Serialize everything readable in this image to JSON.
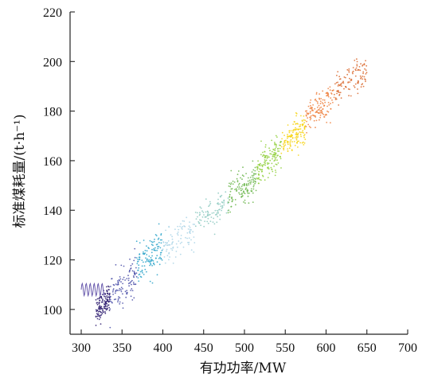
{
  "chart_data": {
    "type": "scatter",
    "title": "",
    "xlabel": "有功功率/MW",
    "ylabel": "标准煤耗量/(t·h⁻¹)",
    "xlim": [
      300,
      700
    ],
    "ylim": [
      90,
      220
    ],
    "xticks": [
      300,
      350,
      400,
      450,
      500,
      550,
      600,
      650,
      700
    ],
    "yticks": [
      100,
      120,
      140,
      160,
      180,
      200,
      220
    ],
    "grid": false,
    "legend": "none",
    "clusters": [
      {
        "x_range": [
          318,
          335
        ],
        "center_y": 102,
        "spread_y": 5,
        "color": "#2b1a6e",
        "density": 130
      },
      {
        "x_range": [
          335,
          368
        ],
        "center_y": 110,
        "spread_y": 7,
        "color": "#4a4fa8",
        "density": 110
      },
      {
        "x_range": [
          368,
          400
        ],
        "center_y": 121,
        "spread_y": 7,
        "color": "#2aa3c9",
        "density": 120
      },
      {
        "x_range": [
          400,
          440
        ],
        "center_y": 128,
        "spread_y": 6,
        "color": "#a9d3e6",
        "density": 90
      },
      {
        "x_range": [
          440,
          480
        ],
        "center_y": 139,
        "spread_y": 6,
        "color": "#8cc9c0",
        "density": 90
      },
      {
        "x_range": [
          480,
          515
        ],
        "center_y": 149,
        "spread_y": 6,
        "color": "#6ab54a",
        "density": 130
      },
      {
        "x_range": [
          515,
          545
        ],
        "center_y": 160,
        "spread_y": 6,
        "color": "#8fcf3a",
        "density": 140
      },
      {
        "x_range": [
          545,
          575
        ],
        "center_y": 170,
        "spread_y": 6,
        "color": "#f7d312",
        "density": 140
      },
      {
        "x_range": [
          575,
          610
        ],
        "center_y": 181,
        "spread_y": 6,
        "color": "#ef7f3c",
        "density": 130
      },
      {
        "x_range": [
          610,
          650
        ],
        "center_y": 192,
        "spread_y": 6,
        "color": "#d9662a",
        "density": 110
      }
    ],
    "start_curve_color": "#6b5cae"
  }
}
